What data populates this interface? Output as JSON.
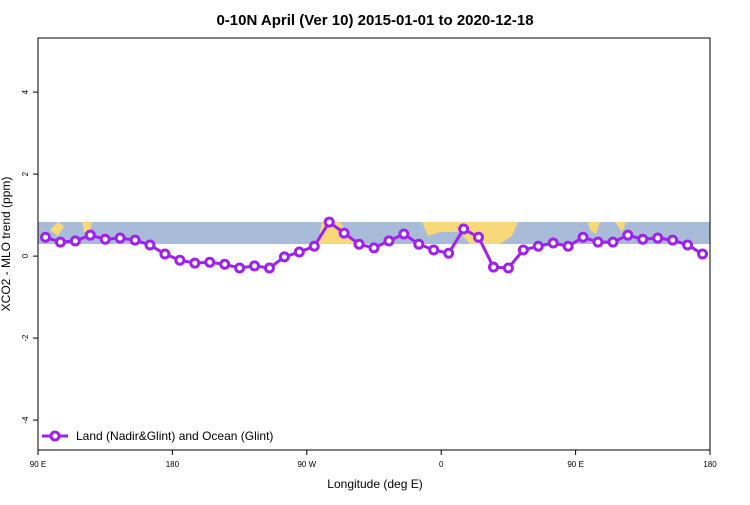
{
  "chart_data": {
    "type": "line",
    "title": "0-10N April (Ver 10)   2015-01-01 to 2020-12-18",
    "x_label": "Longitude (deg E)",
    "y_label": "XCO2 - MLO trend (ppm)",
    "x": [
      95,
      105,
      115,
      125,
      135,
      145,
      155,
      165,
      175,
      185,
      195,
      205,
      215,
      225,
      235,
      245,
      255,
      265,
      275,
      285,
      295,
      305,
      315,
      325,
      335,
      345,
      355,
      365,
      375,
      385,
      395,
      405,
      415,
      425,
      435,
      445,
      455,
      465,
      475,
      485,
      495,
      505,
      515,
      525,
      535
    ],
    "series": [
      {
        "name": "Land (Nadir&Glint) and Ocean (Glint)",
        "color": "#a020f0",
        "values": [
          0.46,
          0.34,
          0.37,
          0.51,
          0.41,
          0.44,
          0.39,
          0.27,
          0.05,
          -0.1,
          -0.17,
          -0.15,
          -0.2,
          -0.29,
          -0.24,
          -0.29,
          -0.02,
          0.1,
          0.24,
          0.83,
          0.56,
          0.29,
          0.2,
          0.37,
          0.54,
          0.29,
          0.15,
          0.07,
          0.66,
          0.46,
          -0.27,
          -0.29,
          0.15,
          0.24,
          0.32,
          0.24,
          0.46,
          0.34,
          0.34,
          0.51,
          0.41,
          0.44,
          0.39,
          0.27,
          0.05
        ]
      }
    ],
    "xlim": [
      90,
      540
    ],
    "ylim": [
      -4.73,
      5.32
    ],
    "xticks": [
      {
        "value": 90,
        "label": "90 E"
      },
      180,
      {
        "value": 270,
        "label": "90 W"
      },
      {
        "value": 360,
        "label": "0"
      },
      {
        "value": 450,
        "label": "90 E"
      },
      {
        "value": 540,
        "label": "180"
      }
    ],
    "yticks": [
      -4,
      -2,
      0,
      2,
      4
    ],
    "legend": "bottom-left"
  }
}
